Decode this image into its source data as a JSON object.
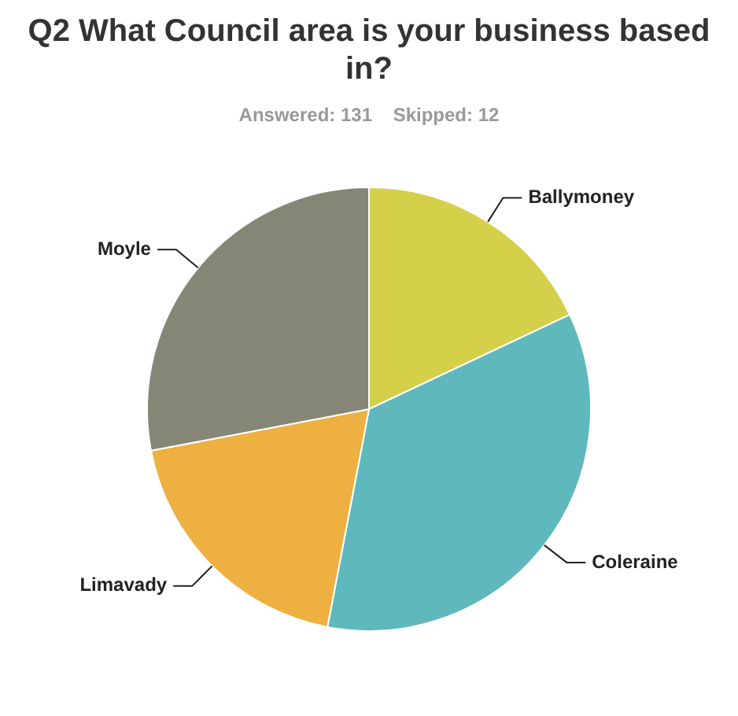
{
  "chart_data": {
    "type": "pie",
    "title": "Q2 What Council area is your business based in?",
    "subtitle": "Answered: 131    Skipped: 12",
    "categories": [
      "Ballymoney",
      "Coleraine",
      "Limavady",
      "Moyle"
    ],
    "values": [
      18,
      35,
      19,
      28
    ],
    "colors": [
      "#d4d04a",
      "#5fb8bb",
      "#edb041",
      "#858676"
    ],
    "legend": false
  }
}
